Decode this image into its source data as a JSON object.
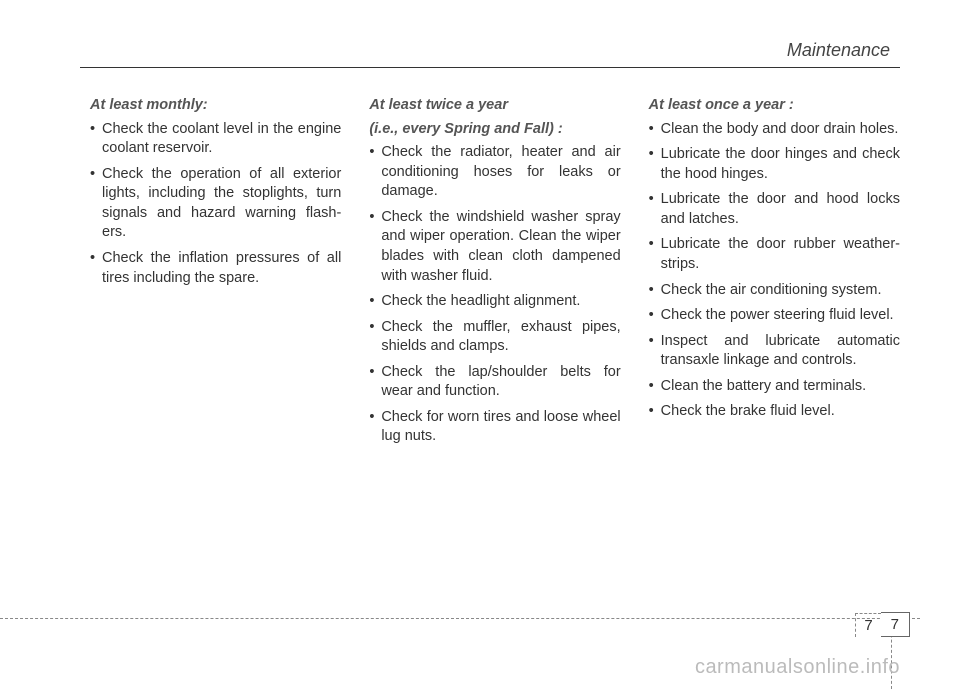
{
  "header": {
    "section_title": "Maintenance"
  },
  "columns": {
    "left": {
      "heading": "At least monthly:",
      "items": [
        "Check the coolant level in the engine coolant reservoir.",
        "Check the operation of all exterior lights, including the stoplights, turn signals and hazard warning flash-ers.",
        "Check the inflation pressures of all tires including the spare."
      ]
    },
    "center": {
      "heading1": "At least twice a year",
      "heading2": "(i.e., every Spring and Fall) :",
      "items": [
        "Check the radiator, heater and air conditioning hoses for leaks or damage.",
        "Check the windshield washer spray and wiper operation. Clean the wiper blades with clean cloth dampened with washer fluid.",
        "Check the headlight alignment.",
        "Check the muffler, exhaust pipes, shields and clamps.",
        "Check the lap/shoulder belts for wear and function.",
        "Check for worn tires and loose wheel lug nuts."
      ]
    },
    "right": {
      "heading": "At least once a year :",
      "items": [
        "Clean the body and door drain holes.",
        "Lubricate the door hinges and check the hood hinges.",
        "Lubricate the door and hood locks and latches.",
        "Lubricate the door rubber weather-strips.",
        "Check the air conditioning system.",
        "Check the power steering fluid level.",
        "Inspect and lubricate automatic transaxle linkage and controls.",
        "Clean the battery and terminals.",
        "Check the brake fluid level."
      ]
    }
  },
  "footer": {
    "page_left": "7",
    "page_right": "7"
  },
  "watermark": "carmanualsonline.info"
}
